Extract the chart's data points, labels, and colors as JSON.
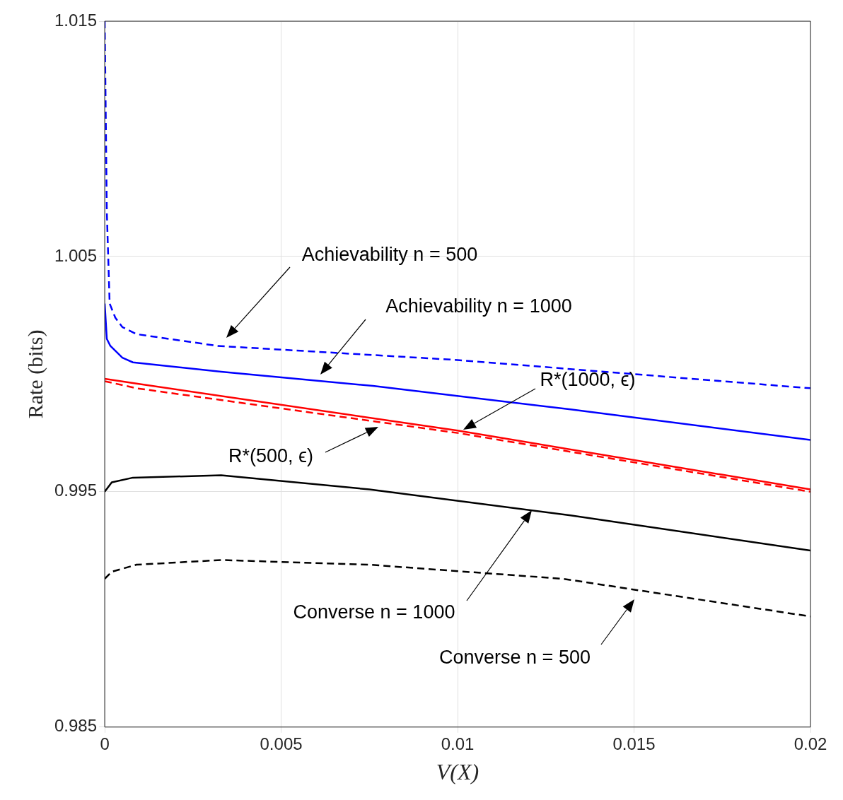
{
  "chart_data": {
    "type": "line",
    "xlabel": "V(X)",
    "ylabel": "Rate (bits)",
    "xlim": [
      0,
      0.02
    ],
    "xticks": [
      0,
      0.005,
      0.01,
      0.015,
      0.02
    ],
    "ylim": [
      0.985,
      1.015
    ],
    "yticks": [
      0.985,
      0.995,
      1.005,
      1.015
    ],
    "grid": true,
    "legend": false,
    "marker": "none",
    "series": [
      {
        "color": "#0000ff",
        "line_style": "dashed",
        "x": [
          0,
          6e-05,
          0.00014,
          0.0003,
          0.0005,
          0.0009,
          0.0032,
          0.01,
          0.02
        ],
        "values": [
          1.015,
          1.0069,
          1.003,
          1.0024,
          1.002,
          1.0017,
          1.0012,
          1.0006,
          0.9994
        ]
      },
      {
        "color": "#0000ff",
        "line_style": "solid",
        "x": [
          0,
          6e-05,
          0.00016,
          0.0005,
          0.0008,
          0.0033,
          0.0076,
          0.0132,
          0.02
        ],
        "values": [
          1.003,
          1.0015,
          1.0012,
          1.0007,
          1.0005,
          1.0001,
          0.9995,
          0.9985,
          0.9972
        ]
      },
      {
        "color": "#ff0000",
        "line_style": "solid",
        "x": [
          0,
          0.0009,
          0.01,
          0.02
        ],
        "values": [
          0.9998,
          0.9996,
          0.9976,
          0.9951
        ]
      },
      {
        "color": "#ff0000",
        "line_style": "dashed",
        "x": [
          0,
          0.0009,
          0.01,
          0.02
        ],
        "values": [
          0.9997,
          0.9994,
          0.9975,
          0.995
        ]
      },
      {
        "color": "#000000",
        "line_style": "solid",
        "x": [
          0,
          0.0002,
          0.0008,
          0.0033,
          0.0075,
          0.0132,
          0.02
        ],
        "values": [
          0.995,
          0.9954,
          0.9956,
          0.9957,
          0.9951,
          0.994,
          0.9925
        ]
      },
      {
        "color": "#000000",
        "line_style": "dashed",
        "x": [
          0,
          0.0002,
          0.0009,
          0.0033,
          0.0075,
          0.013,
          0.02
        ],
        "values": [
          0.9913,
          0.9916,
          0.9919,
          0.9921,
          0.9919,
          0.9913,
          0.9897
        ]
      }
    ],
    "annotations": [
      "Achievability n = 500",
      "Achievability n = 1000",
      "R*(1000, ϵ)",
      "R*(500, ϵ)",
      "Converse n = 1000",
      "Converse n = 500"
    ]
  }
}
